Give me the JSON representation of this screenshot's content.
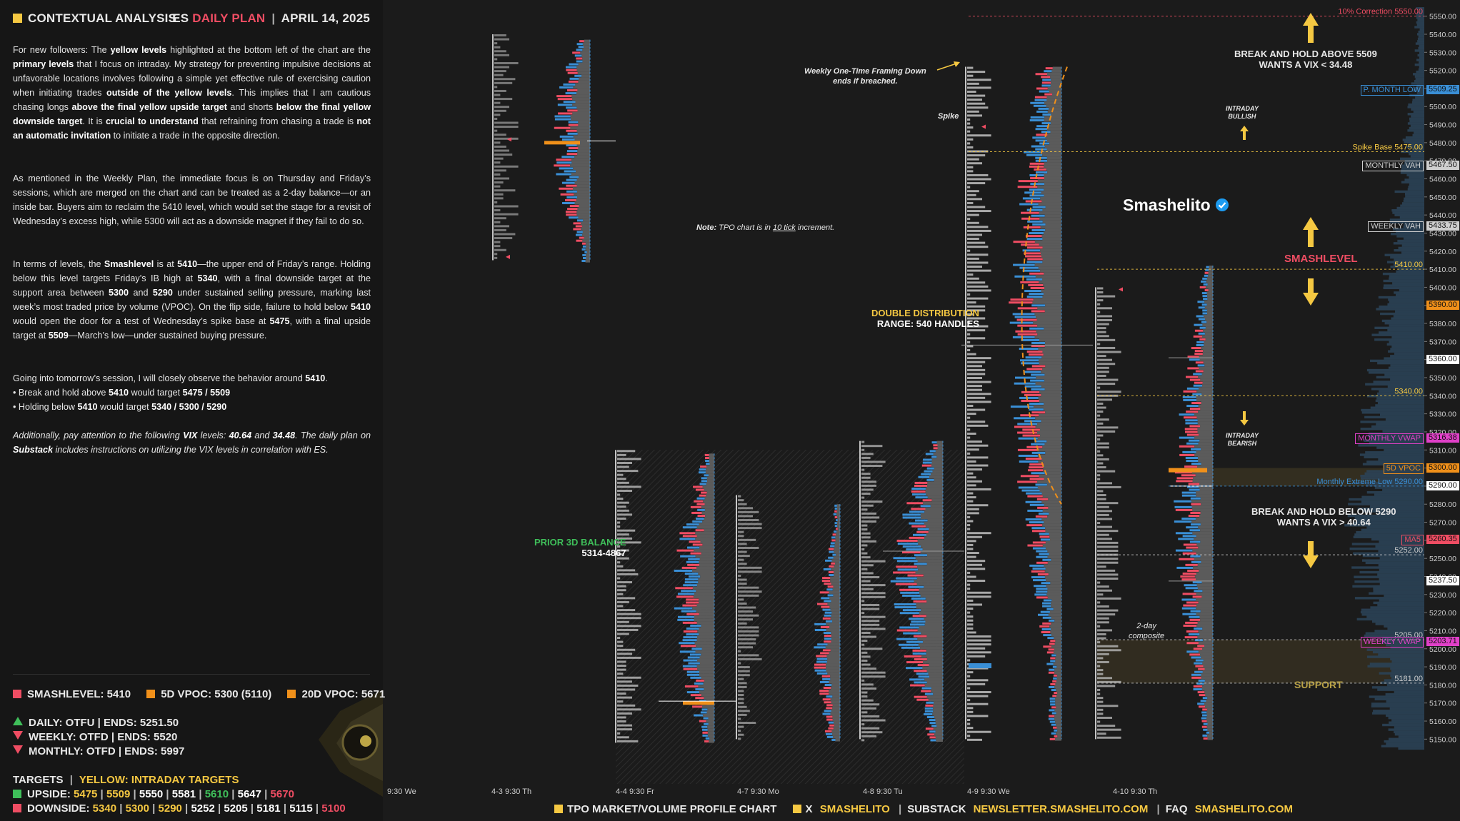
{
  "header": {
    "left_title": "CONTEXTUAL ANALYSIS",
    "right_prefix": "ES",
    "right_highlight": "DAILY PLAN",
    "right_sep": "|",
    "right_date": "APRIL 14, 2025"
  },
  "paragraphs": {
    "p1_html": "For new followers: The <b>yellow levels</b> highlighted at the bottom left of the chart are the <b>primary levels</b> that I focus on intraday. My strategy for preventing impulsive decisions at unfavorable locations involves following a simple yet effective rule of exercising caution when initiating trades <b>outside of the yellow levels</b>. This implies that I am cautious chasing longs <b>above the final yellow upside target</b> and shorts <b>below the final yellow downside target</b>. It is <b>crucial to understand</b> that refraining from chasing a trade is <b>not an automatic invitation</b> to initiate a trade in the opposite direction.",
    "p2_html": "As mentioned in the Weekly Plan, the immediate focus is on Thursday and Friday’s sessions, which are merged on the chart and can be treated as a 2-day balance—or an inside bar. Buyers aim to reclaim the 5410 level, which would set the stage for a revisit of Wednesday’s excess high, while 5300 will act as a downside magnet if they fail to do so.",
    "p3_html": "In terms of levels, the <b>Smashlevel</b> is at <b>5410</b>—the upper end of Friday’s range. Holding below this level targets Friday’s IB high at <b>5340</b>, with a final downside target at the support area between <b>5300</b> and <b>5290</b> under sustained selling pressure, marking last week’s most traded price by volume (VPOC). On the flip side, failure to hold below <b>5410</b> would open the door for a test of Wednesday’s spike base at <b>5475</b>, with a final upside target at <b>5509</b>—March’s low—under sustained buying pressure.",
    "p4_html": "Going into tomorrow’s session, I will closely observe the behavior around <b>5410</b>.<br>• Break and hold above <b>5410</b> would target <b>5475 / 5509</b><br>• Holding below <b>5410</b> would target <b>5340 / 5300 / 5290</b>",
    "p5_html": "<i>Additionally, pay attention to the following <b>VIX</b> levels: <b>40.64</b> and <b>34.48</b>. The daily plan on <b>Substack</b> includes instructions on utilizing the VIX levels in correlation with ES.</i>"
  },
  "legend": {
    "smashlevel": "SMASHLEVEL: 5410",
    "vpoc5d": "5D VPOC: 5300 (5110)",
    "vpoc20d": "20D VPOC: 5671",
    "daily": "DAILY: OTFU  |  ENDS: 5251.50",
    "weekly": "WEEKLY: OTFD  |  ENDS: 5520",
    "monthly": "MONTHLY: OTFD  |  ENDS: 5997",
    "targets_label": "TARGETS",
    "targets_sep": "|",
    "targets_yellow": "YELLOW: INTRADAY TARGETS",
    "upside_label": "UPSIDE:",
    "upside_targets": [
      {
        "v": "5475",
        "c": "yellow"
      },
      {
        "v": "5509",
        "c": "yellow"
      },
      {
        "v": "5550",
        "c": "white"
      },
      {
        "v": "5581",
        "c": "white"
      },
      {
        "v": "5610",
        "c": "green"
      },
      {
        "v": "5647",
        "c": "white"
      },
      {
        "v": "5670",
        "c": "red"
      }
    ],
    "downside_label": "DOWNSIDE:",
    "downside_targets": [
      {
        "v": "5340",
        "c": "yellow"
      },
      {
        "v": "5300",
        "c": "yellow"
      },
      {
        "v": "5290",
        "c": "yellow"
      },
      {
        "v": "5252",
        "c": "white"
      },
      {
        "v": "5205",
        "c": "white"
      },
      {
        "v": "5181",
        "c": "white"
      },
      {
        "v": "5115",
        "c": "white"
      },
      {
        "v": "5100",
        "c": "red"
      }
    ]
  },
  "colors": {
    "yellow": "#f5c842",
    "red": "#ef4d63",
    "green": "#3fbf5a",
    "blue": "#3a8fd6",
    "magenta": "#e040c8",
    "orange": "#f0901a",
    "white": "#ffffff",
    "grey": "#888888"
  },
  "chart_data": {
    "type": "table",
    "title": "TPO MARKET/VOLUME PROFILE CHART",
    "ylim": [
      5145,
      5555
    ],
    "y_ticks": [
      5150,
      5160,
      5170,
      5180,
      5190,
      5200,
      5210,
      5220,
      5230,
      5240,
      5250,
      5260,
      5270,
      5280,
      5290,
      5300,
      5310,
      5320,
      5330,
      5340,
      5350,
      5360,
      5370,
      5380,
      5390,
      5400,
      5410,
      5420,
      5430,
      5440,
      5450,
      5460,
      5470,
      5480,
      5490,
      5500,
      5510,
      5520,
      5530,
      5540,
      5550
    ],
    "y_tick_labels": [
      "5150.00",
      "5160.00",
      "5170.00",
      "5180.00",
      "5190.00",
      "5200.00",
      "5210.00",
      "5220.00",
      "5230.00",
      "5240.00",
      "5250.00",
      "5260.00",
      "5270.00",
      "5280.00",
      "5290.00",
      "5300.00",
      "5310.00",
      "5320.00",
      "5330.00",
      "5340.00",
      "5350.00",
      "5360.00",
      "5370.00",
      "5380.00",
      "5390.00",
      "5400.00",
      "5410.00",
      "5420.00",
      "5430.00",
      "5440.00",
      "5450.00",
      "5460.00",
      "5470.00",
      "5480.00",
      "5490.00",
      "5500.00",
      "5510.00",
      "5520.00",
      "5530.00",
      "5540.00",
      "5550.00"
    ],
    "x_labels": [
      "9:30 We",
      "4-3  9:30 Th",
      "4-4  9:30 Fr",
      "4-7  9:30 Mo",
      "4-8  9:30 Tu",
      "4-9  9:30 We",
      "4-10  9:30 Th"
    ],
    "price_tags": [
      {
        "label": "5509.25",
        "price": 5509.25,
        "bg": "#3a8fd6",
        "text": "P. MONTH LOW",
        "tc": "#3a8fd6"
      },
      {
        "label": "5467.50",
        "price": 5467.5,
        "bg": "#cfcfcf",
        "text": "MONTHLY VAH",
        "tc": "#d0d0d0"
      },
      {
        "label": "5433.75",
        "price": 5433.75,
        "bg": "#cfcfcf",
        "text": "WEEKLY VAH",
        "tc": "#d0d0d0"
      },
      {
        "label": "5390.00",
        "price": 5390,
        "bg": "#f0901a",
        "text": "",
        "tc": ""
      },
      {
        "label": "5360.00",
        "price": 5360,
        "bg": "#ffffff",
        "text": "",
        "tc": ""
      },
      {
        "label": "5316.38",
        "price": 5316.38,
        "bg": "#e040c8",
        "text": "MONTHLY VWAP",
        "tc": "#e040c8"
      },
      {
        "label": "5300.00",
        "price": 5300,
        "bg": "#f0901a",
        "text": "5D VPOC",
        "tc": "#f0901a"
      },
      {
        "label": "5290.00",
        "price": 5290,
        "bg": "#ffffff",
        "text": "",
        "tc": ""
      },
      {
        "label": "5260.35",
        "price": 5260.35,
        "bg": "#ef4d63",
        "text": "MA5",
        "tc": "#ef4d63"
      },
      {
        "label": "5237.50",
        "price": 5237.5,
        "bg": "#ffffff",
        "text": "",
        "tc": ""
      },
      {
        "label": "5203.71",
        "price": 5203.71,
        "bg": "#e040c8",
        "text": "WEEKLY VWAP",
        "tc": "#e040c8"
      }
    ],
    "level_lines": [
      {
        "price": 5550,
        "label": "10% Correction  5550.00",
        "color": "#ef4d63"
      },
      {
        "price": 5475,
        "label": "Spike Base  5475.00",
        "color": "#f5c842"
      },
      {
        "price": 5410,
        "label": "5410.00",
        "color": "#f5c842"
      },
      {
        "price": 5340,
        "label": "5340.00",
        "color": "#f5c842"
      },
      {
        "price": 5290,
        "label": "Monthly Extreme Low  5290.00",
        "color": "#3a8fd6"
      },
      {
        "price": 5252,
        "label": "5252.00",
        "color": "#cccccc"
      },
      {
        "price": 5205,
        "label": "5205.00",
        "color": "#cccccc"
      },
      {
        "price": 5181,
        "label": "5181.00",
        "color": "#cccccc"
      }
    ],
    "annotations": {
      "break_above": "BREAK AND HOLD ABOVE 5509",
      "break_above_vix": "WANTS A VIX < 34.48",
      "break_below": "BREAK AND HOLD BELOW 5290",
      "break_below_vix": "WANTS A VIX > 40.64",
      "smashlevel": "SMASHLEVEL",
      "support": "SUPPORT",
      "brand": "Smashelito",
      "double_dist": "DOUBLE DISTRIBUTION",
      "double_dist_range": "RANGE: 540 HANDLES",
      "prior_balance": "PRIOR 3D BALANCE",
      "prior_balance_range": "5314-4867",
      "weekly_otf": "Weekly One-Time Framing Down",
      "weekly_otf2": "ends if breached.",
      "spike": "Spike",
      "intraday_bullish": "INTRADAY",
      "intraday_bullish2": "BULLISH",
      "intraday_bearish": "INTRADAY",
      "intraday_bearish2": "BEARISH",
      "tpo_note_b": "Note:",
      "tpo_note_1": " TPO chart is in ",
      "tpo_note_u": "10 tick",
      "tpo_note_2": " increment.",
      "composite": "2-day",
      "composite2": "composite"
    }
  },
  "footer": {
    "part1": "TPO MARKET/VOLUME PROFILE CHART",
    "x_label": "X",
    "x_handle": "SMASHELITO",
    "sep": "|",
    "substack_label": "SUBSTACK",
    "substack_url": "NEWSLETTER.SMASHELITO.COM",
    "faq_label": "FAQ",
    "faq_url": "SMASHELITO.COM"
  }
}
